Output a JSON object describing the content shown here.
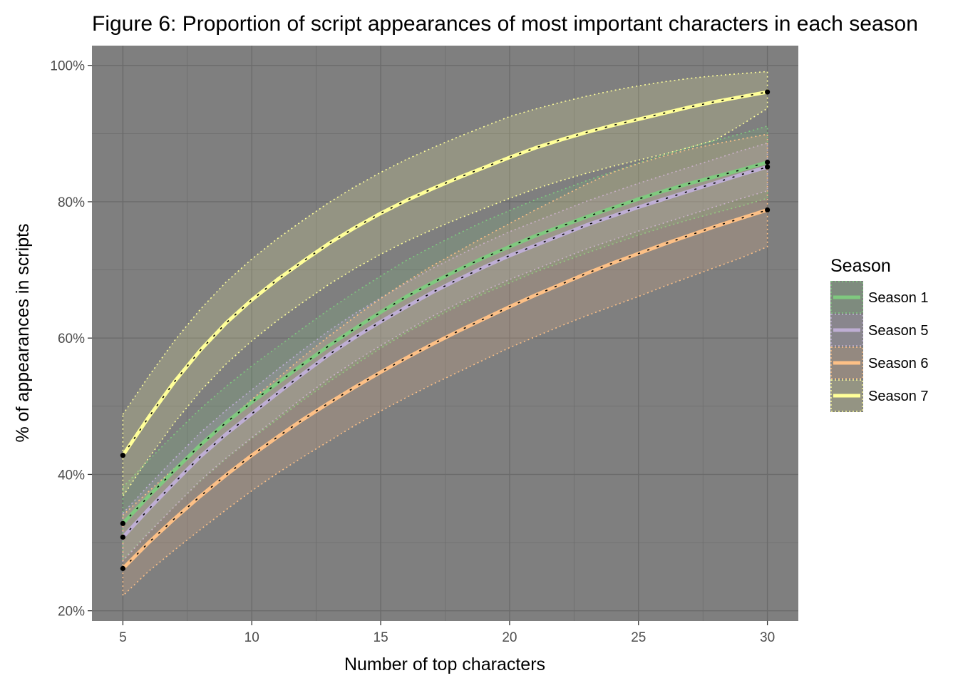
{
  "chart_data": {
    "type": "line",
    "title": "Figure 6: Proportion of script appearances of most important characters in each season",
    "xlabel": "Number of top characters",
    "ylabel": "% of appearances in scripts",
    "xlim": [
      3.8,
      31.2
    ],
    "ylim": [
      18.5,
      102.9
    ],
    "x_ticks": [
      5,
      10,
      15,
      20,
      25,
      30
    ],
    "x_tick_labels": [
      "5",
      "10",
      "15",
      "20",
      "25",
      "30"
    ],
    "y_ticks": [
      20,
      40,
      60,
      80,
      100
    ],
    "y_tick_labels": [
      "20%",
      "40%",
      "60%",
      "80%",
      "100%"
    ],
    "grid": true,
    "panel_background": "#7f7f7f",
    "grid_color": "#6b6b6b",
    "legend": {
      "title": "Season",
      "position": "right"
    },
    "x": [
      5,
      6,
      7,
      8,
      9,
      10,
      11,
      12,
      13,
      14,
      15,
      16,
      17,
      18,
      19,
      20,
      21,
      22,
      23,
      24,
      25,
      26,
      27,
      28,
      29,
      30
    ],
    "series": [
      {
        "name": "Season 1",
        "color": "#7fc97f",
        "values": [
          32.8,
          36.8,
          40.6,
          44.3,
          47.6,
          50.6,
          53.4,
          56.2,
          58.9,
          61.4,
          63.8,
          66.1,
          68.1,
          70.0,
          71.8,
          73.4,
          75.0,
          76.4,
          77.8,
          79.1,
          80.4,
          81.6,
          82.7,
          83.7,
          84.7,
          85.8
        ],
        "lower": [
          27.5,
          31.5,
          35.3,
          39.0,
          42.3,
          45.3,
          48.1,
          50.9,
          53.6,
          56.1,
          58.5,
          60.8,
          62.8,
          64.7,
          66.5,
          68.1,
          69.7,
          71.1,
          72.5,
          73.8,
          75.1,
          76.3,
          77.4,
          78.4,
          79.4,
          80.5
        ],
        "upper": [
          38.1,
          42.1,
          45.9,
          49.6,
          52.9,
          55.9,
          58.7,
          61.5,
          64.2,
          66.7,
          69.1,
          71.4,
          73.4,
          75.3,
          77.1,
          78.7,
          80.3,
          81.7,
          83.1,
          84.4,
          85.7,
          86.9,
          88.0,
          89.0,
          90.0,
          91.1
        ]
      },
      {
        "name": "Season 5",
        "color": "#beaed4",
        "values": [
          30.8,
          34.9,
          38.8,
          42.6,
          45.9,
          48.9,
          51.9,
          54.8,
          57.6,
          60.1,
          62.4,
          64.6,
          66.7,
          68.6,
          70.4,
          72.1,
          73.6,
          75.1,
          76.6,
          77.9,
          79.2,
          80.4,
          81.6,
          82.8,
          84.0,
          85.1
        ],
        "lower": [
          27.3,
          31.4,
          35.3,
          39.1,
          42.4,
          45.4,
          48.4,
          51.3,
          54.1,
          56.6,
          58.9,
          61.1,
          63.2,
          65.1,
          66.9,
          68.6,
          70.1,
          71.6,
          73.1,
          74.4,
          75.7,
          76.9,
          78.1,
          79.3,
          80.5,
          81.6
        ],
        "upper": [
          34.3,
          38.4,
          42.3,
          46.1,
          49.4,
          52.4,
          55.4,
          58.3,
          61.1,
          63.6,
          65.9,
          68.1,
          70.2,
          72.1,
          73.9,
          75.6,
          77.1,
          78.6,
          80.1,
          81.4,
          82.7,
          83.9,
          85.1,
          86.3,
          87.5,
          88.6
        ]
      },
      {
        "name": "Season 6",
        "color": "#fdc086",
        "values": [
          26.2,
          30.0,
          33.5,
          36.8,
          39.9,
          42.8,
          45.5,
          48.1,
          50.5,
          52.8,
          55.0,
          57.1,
          59.1,
          61.0,
          62.8,
          64.6,
          66.3,
          67.9,
          69.5,
          71.0,
          72.4,
          73.8,
          75.1,
          76.4,
          77.6,
          78.8
        ],
        "lower": [
          22.2,
          25.8,
          28.9,
          31.9,
          34.8,
          37.6,
          40.2,
          42.6,
          44.9,
          47.2,
          49.3,
          51.3,
          53.2,
          55.0,
          56.8,
          58.6,
          60.2,
          61.8,
          63.3,
          64.7,
          66.1,
          67.6,
          69.0,
          70.4,
          71.8,
          73.4
        ],
        "upper": [
          34.0,
          37.5,
          40.9,
          44.3,
          47.7,
          51.0,
          54.1,
          57.3,
          60.3,
          63.1,
          65.8,
          68.3,
          70.6,
          72.7,
          74.8,
          76.8,
          78.8,
          80.7,
          82.6,
          84.3,
          85.6,
          86.7,
          87.7,
          88.5,
          89.2,
          89.9
        ]
      },
      {
        "name": "Season 7",
        "color": "#ffff99",
        "values": [
          42.8,
          48.4,
          53.6,
          58.2,
          62.2,
          65.6,
          68.6,
          71.3,
          73.9,
          76.2,
          78.3,
          80.2,
          81.9,
          83.5,
          85.0,
          86.5,
          87.9,
          89.1,
          90.2,
          91.2,
          92.1,
          93.0,
          93.9,
          94.7,
          95.4,
          96.1
        ],
        "lower": [
          36.8,
          42.4,
          47.6,
          52.2,
          56.2,
          59.6,
          62.6,
          65.3,
          67.9,
          70.2,
          72.3,
          74.2,
          75.9,
          77.5,
          79.0,
          80.5,
          81.9,
          83.1,
          84.2,
          85.2,
          86.1,
          87.0,
          88.0,
          89.1,
          91.3,
          93.7
        ],
        "upper": [
          48.8,
          54.4,
          59.6,
          64.2,
          68.2,
          71.6,
          74.6,
          77.3,
          79.9,
          82.2,
          84.3,
          86.2,
          87.9,
          89.5,
          91.0,
          92.5,
          93.6,
          94.6,
          95.5,
          96.3,
          97.0,
          97.6,
          98.1,
          98.5,
          98.8,
          99.1
        ]
      }
    ]
  }
}
